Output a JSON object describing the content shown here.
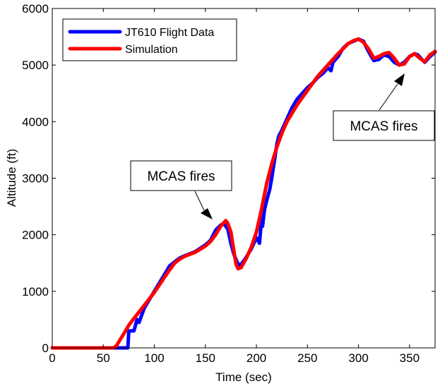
{
  "chart_data": {
    "type": "line",
    "title": "",
    "xlabel": "Time (sec)",
    "ylabel": "Altitude (ft)",
    "xlim": [
      0,
      375
    ],
    "ylim": [
      0,
      6000
    ],
    "xticks": [
      0,
      50,
      100,
      150,
      200,
      250,
      300,
      350
    ],
    "yticks": [
      0,
      1000,
      2000,
      3000,
      4000,
      5000,
      6000
    ],
    "grid": false,
    "legend_position": "top-left",
    "series": [
      {
        "name": "JT610 Flight Data",
        "color": "#0000ff",
        "x": [
          0,
          70,
          71,
          72,
          73,
          74,
          75,
          80,
          83,
          85,
          90,
          95,
          100,
          105,
          110,
          115,
          120,
          125,
          130,
          140,
          150,
          155,
          160,
          165,
          168,
          172,
          175,
          178,
          181,
          183,
          186,
          190,
          195,
          200,
          203,
          204,
          205,
          206,
          208,
          210,
          213,
          215,
          218,
          220,
          222,
          225,
          230,
          235,
          240,
          245,
          250,
          255,
          260,
          265,
          270,
          273,
          275,
          280,
          285,
          290,
          295,
          300,
          305,
          308,
          312,
          315,
          320,
          325,
          330,
          335,
          340,
          345,
          350,
          355,
          358,
          362,
          365,
          370,
          375
        ],
        "y": [
          0,
          0,
          0,
          0,
          0,
          0,
          300,
          300,
          500,
          450,
          700,
          850,
          1000,
          1150,
          1300,
          1450,
          1520,
          1590,
          1630,
          1700,
          1820,
          1900,
          2080,
          2170,
          2200,
          2100,
          1850,
          1650,
          1520,
          1450,
          1500,
          1600,
          1750,
          1950,
          1850,
          2050,
          2300,
          2150,
          2450,
          2600,
          2800,
          3000,
          3350,
          3600,
          3750,
          3850,
          4050,
          4250,
          4400,
          4500,
          4600,
          4680,
          4780,
          4850,
          4950,
          4900,
          5050,
          5150,
          5300,
          5380,
          5420,
          5460,
          5420,
          5300,
          5170,
          5080,
          5100,
          5180,
          5150,
          5050,
          5000,
          5050,
          5150,
          5200,
          5180,
          5100,
          5050,
          5150,
          5230
        ]
      },
      {
        "name": "Simulation",
        "color": "#ff0000",
        "x": [
          0,
          60,
          63,
          65,
          70,
          75,
          80,
          90,
          100,
          110,
          115,
          120,
          125,
          130,
          140,
          150,
          155,
          160,
          165,
          170,
          172,
          175,
          178,
          180,
          182,
          185,
          190,
          195,
          200,
          205,
          210,
          215,
          220,
          225,
          230,
          240,
          250,
          260,
          270,
          280,
          290,
          295,
          300,
          305,
          310,
          315,
          320,
          325,
          330,
          335,
          340,
          345,
          350,
          355,
          360,
          365,
          370,
          375
        ],
        "y": [
          0,
          0,
          40,
          100,
          250,
          400,
          520,
          750,
          980,
          1250,
          1380,
          1500,
          1570,
          1620,
          1690,
          1800,
          1880,
          2000,
          2150,
          2250,
          2200,
          2050,
          1700,
          1480,
          1400,
          1420,
          1580,
          1780,
          2050,
          2450,
          2900,
          3250,
          3550,
          3800,
          4000,
          4300,
          4550,
          4800,
          5000,
          5200,
          5380,
          5430,
          5460,
          5400,
          5280,
          5120,
          5150,
          5200,
          5220,
          5120,
          5000,
          5020,
          5150,
          5200,
          5120,
          5060,
          5180,
          5240
        ]
      }
    ],
    "annotations": [
      {
        "text": "MCAS fires",
        "target_x": 168,
        "target_y": 2200
      },
      {
        "text": "MCAS fires",
        "target_x": 363,
        "target_y": 5100
      }
    ]
  }
}
